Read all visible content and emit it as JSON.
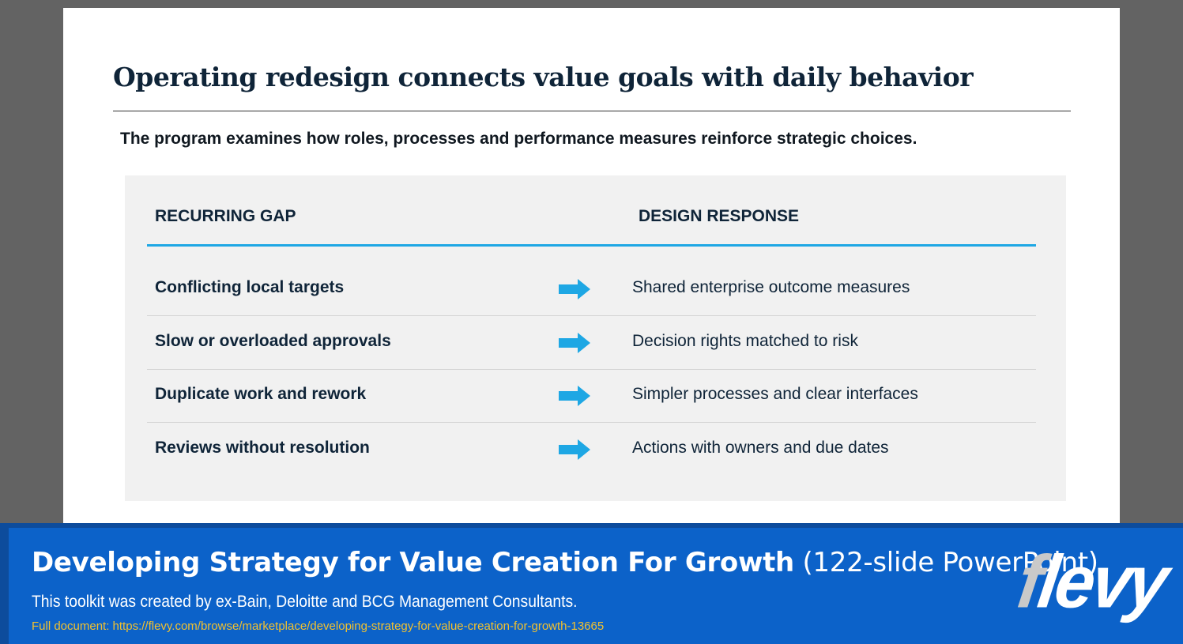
{
  "slide": {
    "title": "Operating redesign connects value goals with daily behavior",
    "subtitle": "The program examines how roles, processes and performance measures reinforce strategic choices.",
    "table": {
      "col_gap": "RECURRING GAP",
      "col_response": "DESIGN RESPONSE",
      "rows": [
        {
          "gap": "Conflicting local targets",
          "response": "Shared enterprise outcome measures"
        },
        {
          "gap": "Slow or overloaded approvals",
          "response": "Decision rights matched to risk"
        },
        {
          "gap": "Duplicate work and rework",
          "response": "Simpler processes and clear interfaces"
        },
        {
          "gap": "Reviews without resolution",
          "response": "Actions with owners and due dates"
        }
      ],
      "arrow_icon": "right-arrow-icon",
      "accent_color": "#1ea7e4"
    }
  },
  "banner": {
    "title_strong": "Developing Strategy for Value Creation For Growth",
    "title_light": "(122-slide PowerPoint)",
    "subtitle": "This toolkit was created by ex-Bain, Deloitte and BCG Management Consultants.",
    "link": "Full document: https://flevy.com/browse/marketplace/developing-strategy-for-value-creation-for-growth-13665",
    "logo": "flevy",
    "background_color": "#0c62c9",
    "link_color": "#f2c12e"
  }
}
